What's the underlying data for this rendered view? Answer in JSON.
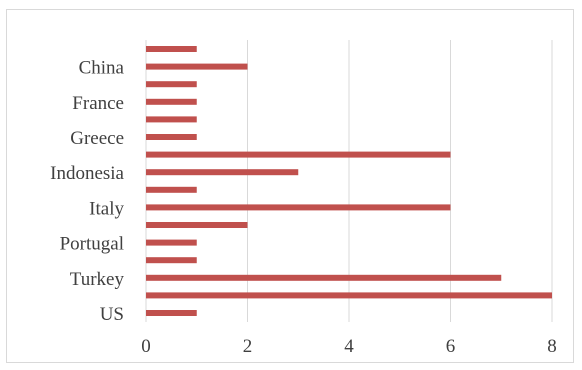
{
  "chart_data": {
    "type": "bar",
    "orientation": "horizontal",
    "categories": [
      "",
      "China",
      "",
      "France",
      "",
      "Greece",
      "",
      "Indonesia",
      "",
      "Italy",
      "",
      "Portugal",
      "",
      "Turkey",
      "",
      "US"
    ],
    "values": [
      1,
      2,
      1,
      1,
      1,
      1,
      6,
      3,
      1,
      6,
      2,
      1,
      1,
      7,
      8,
      1
    ],
    "xlim": [
      0,
      8
    ],
    "x_ticks": [
      "0",
      "2",
      "4",
      "6",
      "8"
    ],
    "grid": "vertical",
    "legend": "none",
    "colors": {
      "bar": "#c0504d",
      "grid": "#d9d9d9",
      "text": "#404040",
      "border": "#d9d9d9"
    }
  }
}
